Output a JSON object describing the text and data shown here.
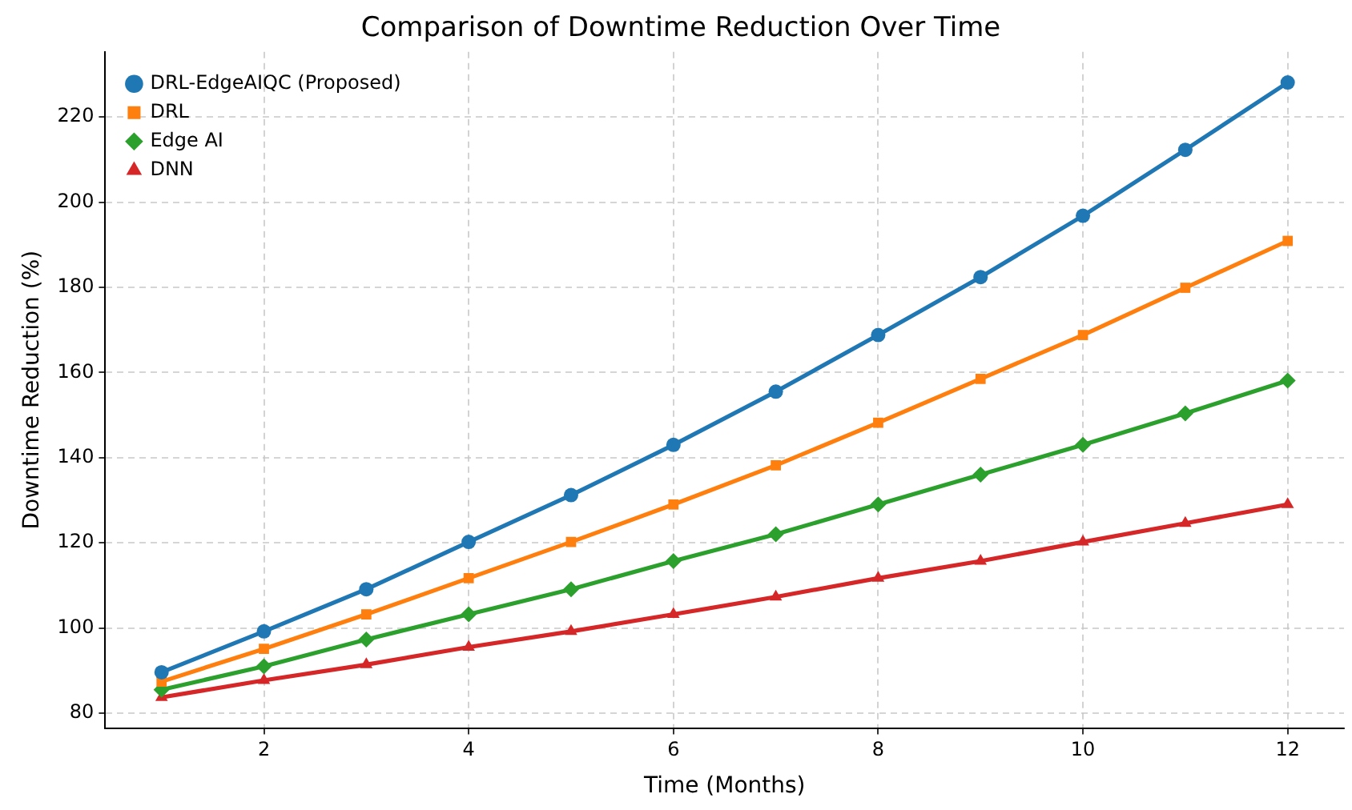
{
  "chart_data": {
    "type": "line",
    "title": "Comparison of Downtime Reduction Over Time",
    "xlabel": "Time (Months)",
    "ylabel": "Downtime Reduction (%)",
    "x": [
      1,
      2,
      3,
      4,
      5,
      6,
      7,
      8,
      9,
      10,
      11,
      12
    ],
    "series": [
      {
        "name": "DRL-EdgeAIQC (Proposed)",
        "color": "#1f77b4",
        "marker": "circle",
        "values": [
          89.6,
          99.2,
          109.1,
          120.2,
          131.2,
          143,
          155.5,
          168.8,
          182.4,
          196.8,
          212.3,
          228.1
        ]
      },
      {
        "name": "DRL",
        "color": "#ff7f0e",
        "marker": "square",
        "values": [
          87.4,
          95.1,
          103.2,
          111.7,
          120.2,
          129,
          138.2,
          148.2,
          158.5,
          168.8,
          179.9,
          190.9
        ]
      },
      {
        "name": "Edge AI",
        "color": "#2ca02c",
        "marker": "diamond",
        "values": [
          85.5,
          91,
          97.3,
          103.2,
          109.1,
          115.7,
          122,
          129,
          136,
          143,
          150.4,
          158.1
        ]
      },
      {
        "name": "DNN",
        "color": "#d62728",
        "marker": "triangle",
        "values": [
          83.7,
          87.7,
          91.4,
          95.5,
          99.2,
          103.2,
          107.3,
          111.7,
          115.7,
          120.2,
          124.6,
          129
        ]
      }
    ],
    "xlim": [
      0.45,
      12.55
    ],
    "xticks": [
      2,
      4,
      6,
      8,
      10,
      12
    ],
    "ylim": [
      76.5,
      235.3
    ],
    "yticks": [
      80,
      100,
      120,
      140,
      160,
      180,
      200,
      220
    ],
    "grid": true,
    "legend": "top left",
    "line_style": "solid"
  }
}
